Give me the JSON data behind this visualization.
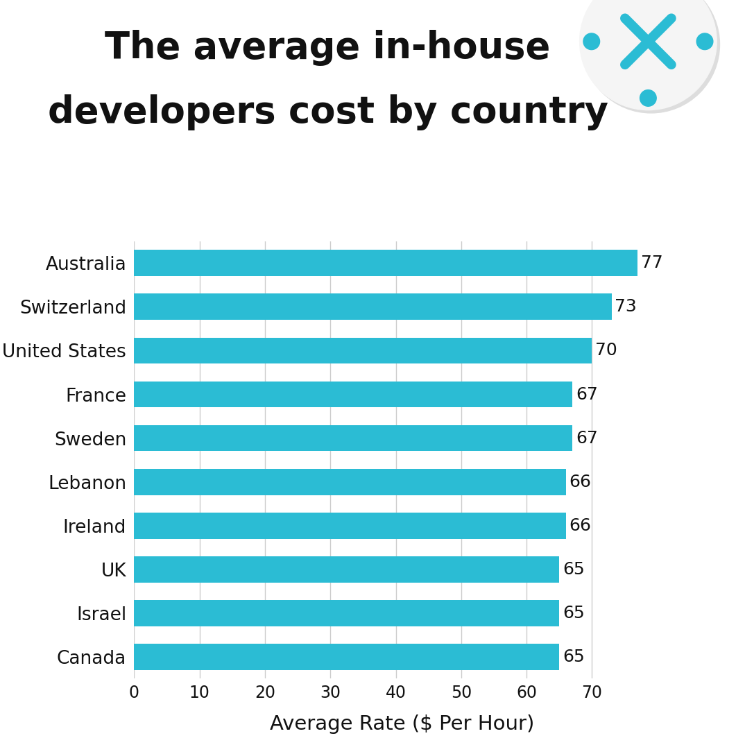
{
  "title_line1": "The average in-house",
  "title_line2": "developers cost by country",
  "xlabel": "Average Rate ($ Per Hour)",
  "categories": [
    "Australia",
    "Switzerland",
    "United States",
    "France",
    "Sweden",
    "Lebanon",
    "Ireland",
    "UK",
    "Israel",
    "Canada"
  ],
  "values": [
    77,
    73,
    70,
    67,
    67,
    66,
    66,
    65,
    65,
    65
  ],
  "bar_color": "#2BBCD4",
  "xlim": [
    0,
    82
  ],
  "xticks": [
    0,
    10,
    20,
    30,
    40,
    50,
    60,
    70
  ],
  "background_color": "#ffffff",
  "title_fontsize": 38,
  "label_fontsize": 19,
  "tick_fontsize": 17,
  "value_fontsize": 18,
  "bar_height": 0.6,
  "grid_color": "#cccccc",
  "text_color": "#111111"
}
